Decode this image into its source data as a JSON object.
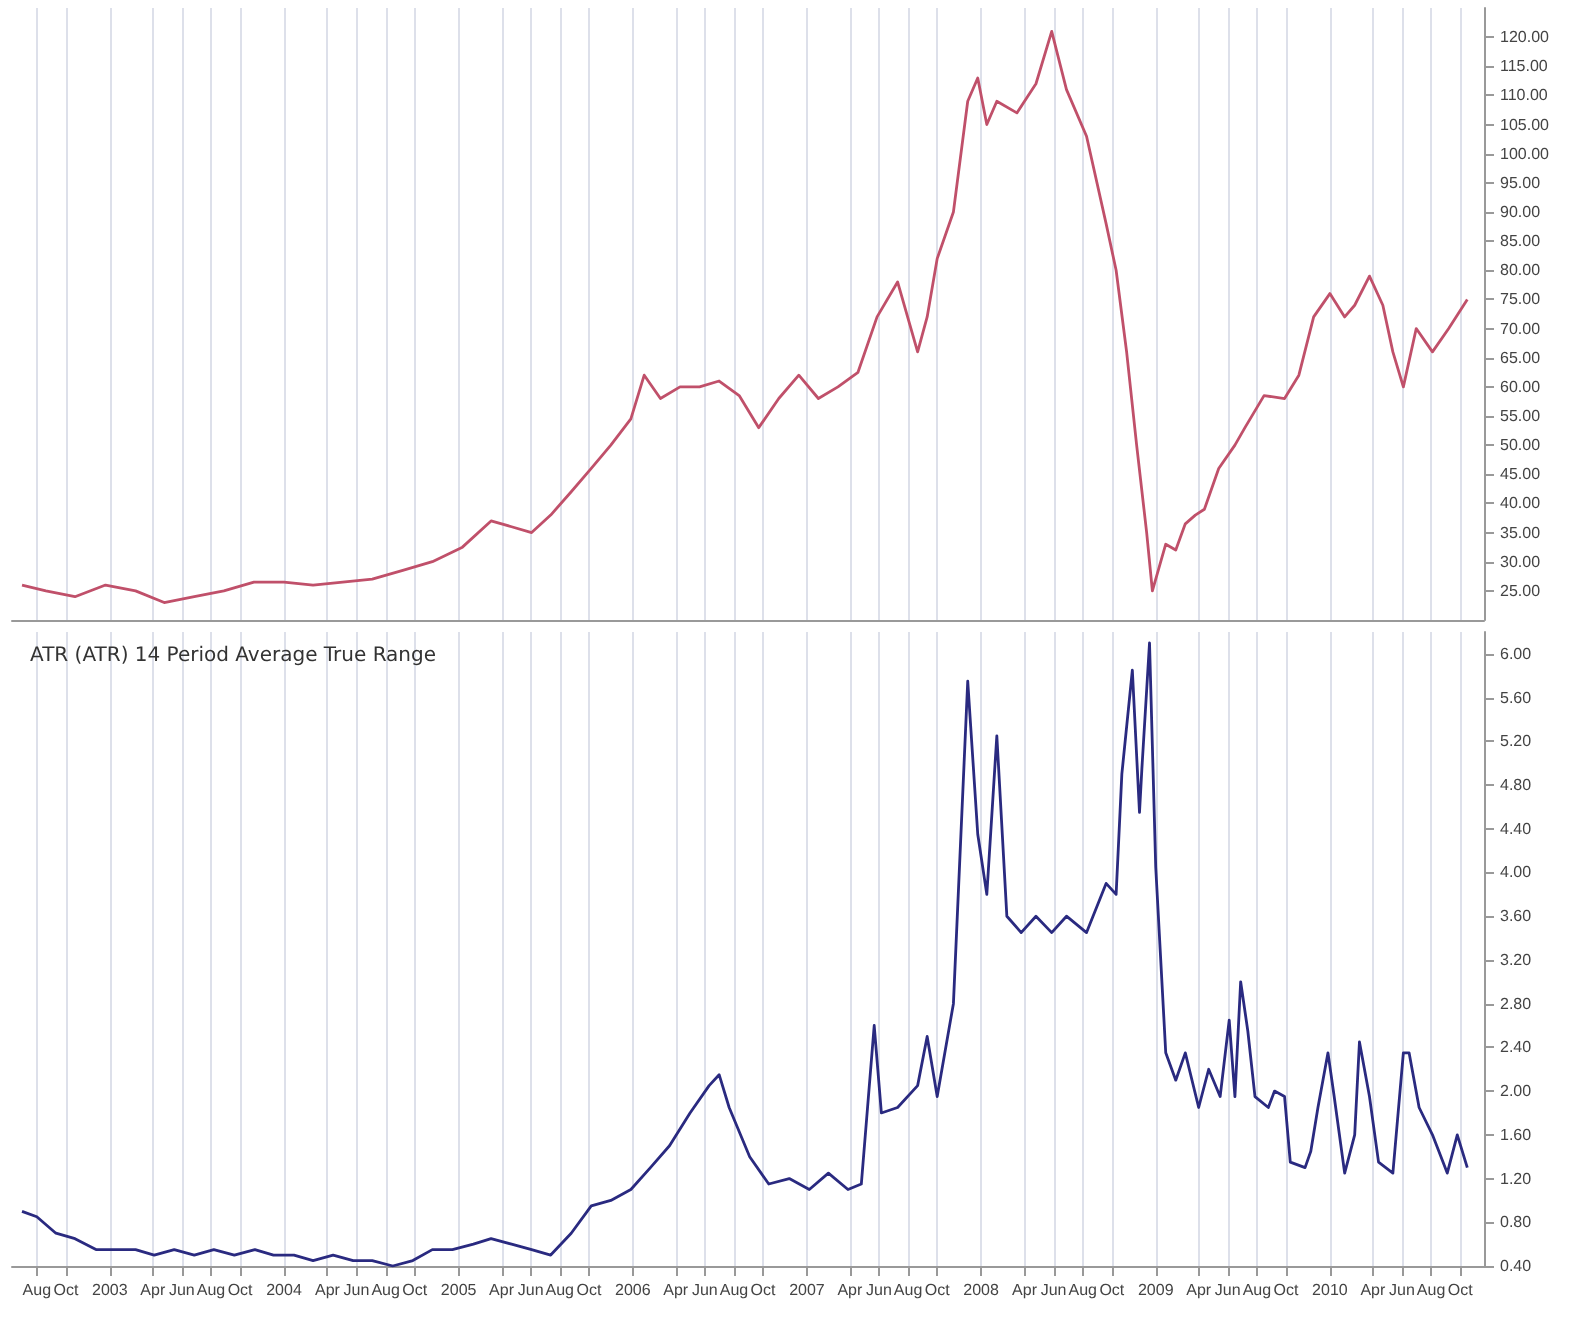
{
  "chart_data": [
    {
      "type": "line",
      "color": "#c0506a",
      "grid": "x",
      "tick_labels": "y",
      "xlim": [
        "2002-06-10",
        "2010-11-20"
      ],
      "xticks": [
        {
          "value": "2002-08-01",
          "label": null
        },
        {
          "value": "2002-10-01",
          "label": null
        },
        {
          "value": "2003-01-01",
          "label": null
        },
        {
          "value": "2003-04-01",
          "label": null
        },
        {
          "value": "2003-06-01",
          "label": null
        },
        {
          "value": "2003-08-01",
          "label": null
        },
        {
          "value": "2003-10-01",
          "label": null
        },
        {
          "value": "2004-01-01",
          "label": null
        },
        {
          "value": "2004-04-01",
          "label": null
        },
        {
          "value": "2004-06-01",
          "label": null
        },
        {
          "value": "2004-08-01",
          "label": null
        },
        {
          "value": "2004-10-01",
          "label": null
        },
        {
          "value": "2005-01-01",
          "label": null
        },
        {
          "value": "2005-04-01",
          "label": null
        },
        {
          "value": "2005-06-01",
          "label": null
        },
        {
          "value": "2005-08-01",
          "label": null
        },
        {
          "value": "2005-10-01",
          "label": null
        },
        {
          "value": "2006-01-01",
          "label": null
        },
        {
          "value": "2006-04-01",
          "label": null
        },
        {
          "value": "2006-06-01",
          "label": null
        },
        {
          "value": "2006-08-01",
          "label": null
        },
        {
          "value": "2006-10-01",
          "label": null
        },
        {
          "value": "2007-01-01",
          "label": null
        },
        {
          "value": "2007-04-01",
          "label": null
        },
        {
          "value": "2007-06-01",
          "label": null
        },
        {
          "value": "2007-08-01",
          "label": null
        },
        {
          "value": "2007-10-01",
          "label": null
        },
        {
          "value": "2008-01-01",
          "label": null
        },
        {
          "value": "2008-04-01",
          "label": null
        },
        {
          "value": "2008-06-01",
          "label": null
        },
        {
          "value": "2008-08-01",
          "label": null
        },
        {
          "value": "2008-10-01",
          "label": null
        },
        {
          "value": "2009-01-01",
          "label": null
        },
        {
          "value": "2009-04-01",
          "label": null
        },
        {
          "value": "2009-06-01",
          "label": null
        },
        {
          "value": "2009-08-01",
          "label": null
        },
        {
          "value": "2009-10-01",
          "label": null
        },
        {
          "value": "2010-01-01",
          "label": null
        },
        {
          "value": "2010-04-01",
          "label": null
        },
        {
          "value": "2010-06-01",
          "label": null
        },
        {
          "value": "2010-08-01",
          "label": null
        },
        {
          "value": "2010-10-01",
          "label": null
        }
      ],
      "ylim": [
        20,
        125
      ],
      "yticks": [
        {
          "value": 25,
          "label": "25.00"
        },
        {
          "value": 30,
          "label": "30.00"
        },
        {
          "value": 35,
          "label": "35.00"
        },
        {
          "value": 40,
          "label": "40.00"
        },
        {
          "value": 45,
          "label": "45.00"
        },
        {
          "value": 50,
          "label": "50.00"
        },
        {
          "value": 55,
          "label": "55.00"
        },
        {
          "value": 60,
          "label": "60.00"
        },
        {
          "value": 65,
          "label": "65.00"
        },
        {
          "value": 70,
          "label": "70.00"
        },
        {
          "value": 75,
          "label": "75.00"
        },
        {
          "value": 80,
          "label": "80.00"
        },
        {
          "value": 85,
          "label": "85.00"
        },
        {
          "value": 90,
          "label": "90.00"
        },
        {
          "value": 95,
          "label": "95.00"
        },
        {
          "value": 100,
          "label": "100.00"
        },
        {
          "value": 105,
          "label": "105.00"
        },
        {
          "value": 110,
          "label": "110.00"
        },
        {
          "value": 115,
          "label": "115.00"
        },
        {
          "value": 120,
          "label": "120.00"
        }
      ],
      "x": [
        "2002-07-01",
        "2002-08-20",
        "2002-10-20",
        "2002-12-23",
        "2003-02-24",
        "2003-04-25",
        "2003-06-27",
        "2003-08-28",
        "2003-10-30",
        "2004-01-01",
        "2004-03-02",
        "2004-05-03",
        "2004-07-04",
        "2004-09-06",
        "2004-11-07",
        "2005-01-09",
        "2005-03-10",
        "2005-04-22",
        "2005-06-03",
        "2005-07-13",
        "2005-08-25",
        "2005-10-06",
        "2005-11-16",
        "2005-12-28",
        "2006-01-25",
        "2006-02-28",
        "2006-04-10",
        "2006-05-21",
        "2006-07-01",
        "2006-08-12",
        "2006-09-22",
        "2006-11-03",
        "2006-12-15",
        "2007-01-25",
        "2007-03-07",
        "2007-04-18",
        "2007-05-28",
        "2007-07-10",
        "2007-08-21",
        "2007-09-10",
        "2007-10-01",
        "2007-11-04",
        "2007-12-04",
        "2007-12-25",
        "2008-01-13",
        "2008-02-03",
        "2008-03-16",
        "2008-04-25",
        "2008-05-28",
        "2008-06-28",
        "2008-08-09",
        "2008-09-19",
        "2008-10-10",
        "2008-11-01",
        "2008-11-22",
        "2008-12-13",
        "2008-12-25",
        "2009-01-22",
        "2009-02-12",
        "2009-03-04",
        "2009-03-25",
        "2009-04-13",
        "2009-05-13",
        "2009-06-16",
        "2009-07-07",
        "2009-08-16",
        "2009-09-28",
        "2009-10-28",
        "2009-11-28",
        "2010-01-01",
        "2010-02-01",
        "2010-02-22",
        "2010-03-25",
        "2010-04-22",
        "2010-05-13",
        "2010-06-04",
        "2010-07-01",
        "2010-08-04",
        "2010-09-07",
        "2010-10-16"
      ],
      "values": [
        26,
        25,
        24,
        26,
        25,
        23,
        24,
        25,
        26.5,
        26.5,
        26,
        26.5,
        27,
        28.5,
        30,
        32.5,
        37,
        36,
        35,
        38,
        42,
        46,
        50,
        54.5,
        62,
        58,
        60,
        60,
        61,
        58.5,
        53,
        58,
        62,
        58,
        60,
        62.5,
        72,
        78,
        66,
        72,
        82,
        90,
        109,
        113,
        105,
        109,
        107,
        112,
        121,
        111,
        103,
        88,
        80,
        66,
        50,
        35,
        25,
        33,
        32,
        36.5,
        38,
        39,
        46,
        50,
        53,
        58.5,
        58,
        62,
        72,
        76,
        72,
        74,
        79,
        74,
        66,
        60,
        70,
        66,
        70,
        75
      ]
    },
    {
      "type": "line",
      "color": "#2a2a80",
      "grid": "x",
      "title": "ATR (ATR) 14 Period Average True Range",
      "xlim": [
        "2002-06-10",
        "2010-11-20"
      ],
      "xticks": [
        {
          "value": "2002-08-01",
          "label": "Aug"
        },
        {
          "value": "2002-10-01",
          "label": "Oct"
        },
        {
          "value": "2003-01-01",
          "label": "2003"
        },
        {
          "value": "2003-04-01",
          "label": "Apr"
        },
        {
          "value": "2003-06-01",
          "label": "Jun"
        },
        {
          "value": "2003-08-01",
          "label": "Aug"
        },
        {
          "value": "2003-10-01",
          "label": "Oct"
        },
        {
          "value": "2004-01-01",
          "label": "2004"
        },
        {
          "value": "2004-04-01",
          "label": "Apr"
        },
        {
          "value": "2004-06-01",
          "label": "Jun"
        },
        {
          "value": "2004-08-01",
          "label": "Aug"
        },
        {
          "value": "2004-10-01",
          "label": "Oct"
        },
        {
          "value": "2005-01-01",
          "label": "2005"
        },
        {
          "value": "2005-04-01",
          "label": "Apr"
        },
        {
          "value": "2005-06-01",
          "label": "Jun"
        },
        {
          "value": "2005-08-01",
          "label": "Aug"
        },
        {
          "value": "2005-10-01",
          "label": "Oct"
        },
        {
          "value": "2006-01-01",
          "label": "2006"
        },
        {
          "value": "2006-04-01",
          "label": "Apr"
        },
        {
          "value": "2006-06-01",
          "label": "Jun"
        },
        {
          "value": "2006-08-01",
          "label": "Aug"
        },
        {
          "value": "2006-10-01",
          "label": "Oct"
        },
        {
          "value": "2007-01-01",
          "label": "2007"
        },
        {
          "value": "2007-04-01",
          "label": "Apr"
        },
        {
          "value": "2007-06-01",
          "label": "Jun"
        },
        {
          "value": "2007-08-01",
          "label": "Aug"
        },
        {
          "value": "2007-10-01",
          "label": "Oct"
        },
        {
          "value": "2008-01-01",
          "label": "2008"
        },
        {
          "value": "2008-04-01",
          "label": "Apr"
        },
        {
          "value": "2008-06-01",
          "label": "Jun"
        },
        {
          "value": "2008-08-01",
          "label": "Aug"
        },
        {
          "value": "2008-10-01",
          "label": "Oct"
        },
        {
          "value": "2009-01-01",
          "label": "2009"
        },
        {
          "value": "2009-04-01",
          "label": "Apr"
        },
        {
          "value": "2009-06-01",
          "label": "Jun"
        },
        {
          "value": "2009-08-01",
          "label": "Aug"
        },
        {
          "value": "2009-10-01",
          "label": "Oct"
        },
        {
          "value": "2010-01-01",
          "label": "2010"
        },
        {
          "value": "2010-04-01",
          "label": "Apr"
        },
        {
          "value": "2010-06-01",
          "label": "Jun"
        },
        {
          "value": "2010-08-01",
          "label": "Aug"
        },
        {
          "value": "2010-10-01",
          "label": "Oct"
        }
      ],
      "ylim": [
        0.4,
        6.2
      ],
      "yticks": [
        {
          "value": 0.4,
          "label": "0.40"
        },
        {
          "value": 0.8,
          "label": "0.80"
        },
        {
          "value": 1.2,
          "label": "1.20"
        },
        {
          "value": 1.6,
          "label": "1.60"
        },
        {
          "value": 2.0,
          "label": "2.00"
        },
        {
          "value": 2.4,
          "label": "2.40"
        },
        {
          "value": 2.8,
          "label": "2.80"
        },
        {
          "value": 3.2,
          "label": "3.20"
        },
        {
          "value": 3.6,
          "label": "3.60"
        },
        {
          "value": 4.0,
          "label": "4.00"
        },
        {
          "value": 4.4,
          "label": "4.40"
        },
        {
          "value": 4.8,
          "label": "4.80"
        },
        {
          "value": 5.2,
          "label": "5.20"
        },
        {
          "value": 5.6,
          "label": "5.60"
        },
        {
          "value": 6.0,
          "label": "6.00"
        }
      ],
      "x": [
        "2002-07-01",
        "2002-08-01",
        "2002-09-10",
        "2002-10-20",
        "2002-12-03",
        "2003-01-13",
        "2003-02-24",
        "2003-04-04",
        "2003-05-16",
        "2003-06-27",
        "2003-08-07",
        "2003-09-19",
        "2003-11-01",
        "2003-12-10",
        "2004-01-22",
        "2004-03-02",
        "2004-04-13",
        "2004-05-25",
        "2004-07-04",
        "2004-08-16",
        "2004-09-27",
        "2004-11-07",
        "2004-12-19",
        "2005-02-01",
        "2005-03-10",
        "2005-04-22",
        "2005-06-03",
        "2005-07-13",
        "2005-08-25",
        "2005-10-06",
        "2005-11-16",
        "2005-12-28",
        "2006-02-07",
        "2006-03-19",
        "2006-05-01",
        "2006-06-10",
        "2006-07-01",
        "2006-07-22",
        "2006-09-03",
        "2006-10-13",
        "2006-11-25",
        "2007-01-06",
        "2007-02-15",
        "2007-03-28",
        "2007-04-25",
        "2007-05-22",
        "2007-06-06",
        "2007-07-10",
        "2007-08-21",
        "2007-09-10",
        "2007-10-01",
        "2007-11-04",
        "2007-12-04",
        "2007-12-25",
        "2008-01-13",
        "2008-02-03",
        "2008-02-24",
        "2008-03-25",
        "2008-04-25",
        "2008-05-28",
        "2008-06-28",
        "2008-08-09",
        "2008-09-19",
        "2008-10-10",
        "2008-10-22",
        "2008-11-13",
        "2008-11-28",
        "2008-12-03",
        "2008-12-19",
        "2009-01-01",
        "2009-01-22",
        "2009-02-12",
        "2009-03-04",
        "2009-04-01",
        "2009-04-22",
        "2009-05-16",
        "2009-06-04",
        "2009-06-16",
        "2009-06-28",
        "2009-07-13",
        "2009-07-28",
        "2009-08-25",
        "2009-09-07",
        "2009-09-28",
        "2009-10-10",
        "2009-11-10",
        "2009-11-22",
        "2009-12-07",
        "2009-12-28",
        "2010-01-10",
        "2010-02-01",
        "2010-02-22",
        "2010-03-04",
        "2010-03-25",
        "2010-04-13",
        "2010-05-13",
        "2010-06-04",
        "2010-06-16",
        "2010-07-07",
        "2010-08-04",
        "2010-09-04",
        "2010-09-25",
        "2010-10-16"
      ],
      "values": [
        0.9,
        0.85,
        0.7,
        0.65,
        0.55,
        0.55,
        0.55,
        0.5,
        0.55,
        0.5,
        0.55,
        0.5,
        0.55,
        0.5,
        0.5,
        0.45,
        0.5,
        0.45,
        0.45,
        0.4,
        0.45,
        0.55,
        0.55,
        0.6,
        0.65,
        0.6,
        0.55,
        0.5,
        0.7,
        0.95,
        1.0,
        1.1,
        1.3,
        1.5,
        1.8,
        2.05,
        2.15,
        1.85,
        1.4,
        1.15,
        1.2,
        1.1,
        1.25,
        1.1,
        1.15,
        2.6,
        1.8,
        1.85,
        2.05,
        2.5,
        1.95,
        2.8,
        5.75,
        4.35,
        3.8,
        5.25,
        3.6,
        3.45,
        3.6,
        3.45,
        3.6,
        3.45,
        3.9,
        3.8,
        4.9,
        5.85,
        4.55,
        4.95,
        6.1,
        4.05,
        2.35,
        2.1,
        2.35,
        1.85,
        2.2,
        1.95,
        2.65,
        1.95,
        3.0,
        2.55,
        1.95,
        1.85,
        2.0,
        1.95,
        1.35,
        1.3,
        1.45,
        1.85,
        2.35,
        1.95,
        1.25,
        1.6,
        2.45,
        1.95,
        1.35,
        1.25,
        2.35,
        2.35,
        1.85,
        1.6,
        1.25,
        1.6,
        1.3
      ]
    }
  ]
}
